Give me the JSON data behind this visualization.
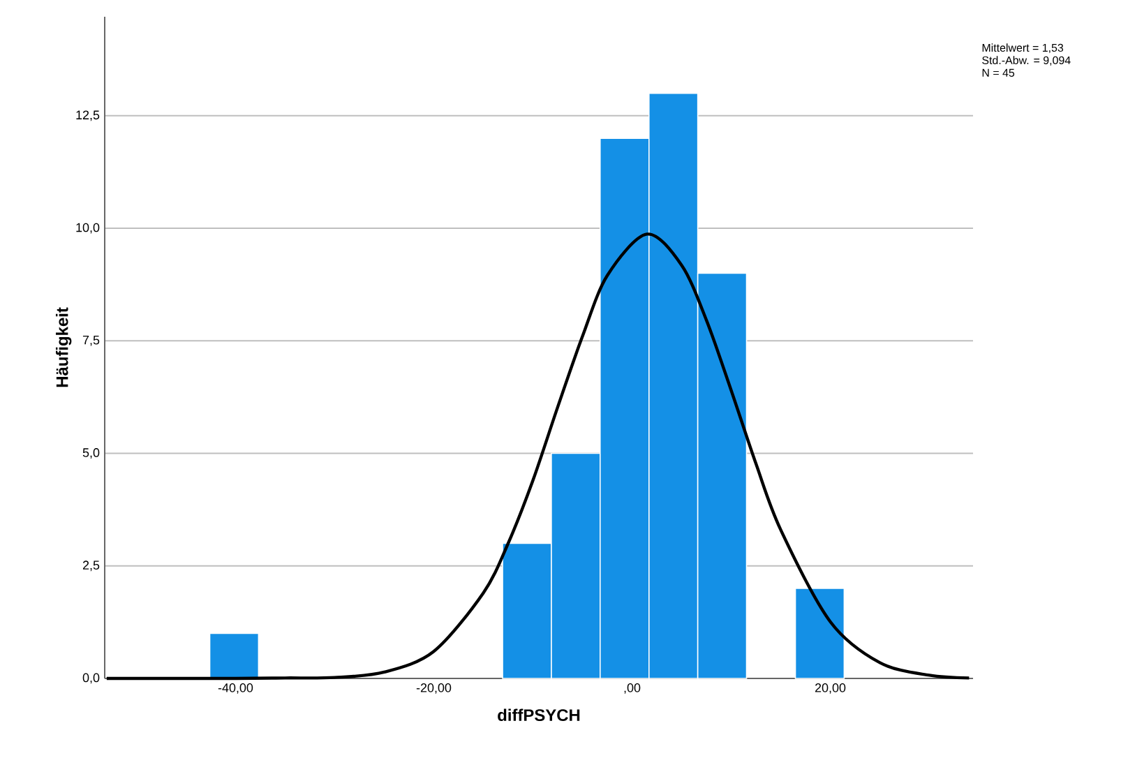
{
  "chart_data": {
    "type": "histogram",
    "xlabel": "diffPSYCH",
    "ylabel": "Häufigkeit",
    "annotations": [
      "Mittelwert = 1,53",
      "Std.-Abw. = 9,094",
      "N = 45"
    ],
    "bins": [
      -42.6,
      -37.68,
      -32.75,
      -27.83,
      -22.91,
      -17.98,
      -13.06,
      -8.14,
      -3.22,
      1.71,
      6.63,
      11.55,
      16.48,
      21.4
    ],
    "series": [
      {
        "type": "histogram",
        "color": "#1490e6",
        "values": [
          1,
          0,
          0,
          0,
          0,
          0,
          3,
          5,
          12,
          13,
          9,
          0,
          2
        ]
      },
      {
        "type": "line",
        "color": "#000000",
        "x": [
          -53,
          -40,
          -35,
          -30,
          -25,
          -20,
          -15,
          -12.5,
          -10,
          -7.5,
          -5,
          -2.5,
          1.5,
          5,
          7.5,
          10,
          12.5,
          15,
          20,
          25,
          30,
          34
        ],
        "values": [
          0,
          0,
          0.01,
          0.02,
          0.14,
          0.6,
          1.9,
          3,
          4.4,
          6.03,
          7.6,
          8.95,
          9.87,
          9.18,
          7.96,
          6.4,
          4.77,
          3.3,
          1.26,
          0.35,
          0.07,
          0.01
        ]
      }
    ],
    "xlim": [
      -53.2,
      34.4
    ],
    "ylim": [
      0,
      14.7
    ],
    "xticks": [
      {
        "value": -40,
        "label": "-40,00"
      },
      {
        "value": -20,
        "label": "-20,00"
      },
      {
        "value": 0,
        "label": ",00"
      },
      {
        "value": 20,
        "label": "20,00"
      }
    ],
    "yticks": [
      {
        "value": 0,
        "label": "0,0"
      },
      {
        "value": 2.5,
        "label": "2,5"
      },
      {
        "value": 5,
        "label": "5,0"
      },
      {
        "value": 7.5,
        "label": "7,5"
      },
      {
        "value": 10,
        "label": "10,0"
      },
      {
        "value": 12.5,
        "label": "12,5"
      }
    ],
    "grid": "y"
  }
}
